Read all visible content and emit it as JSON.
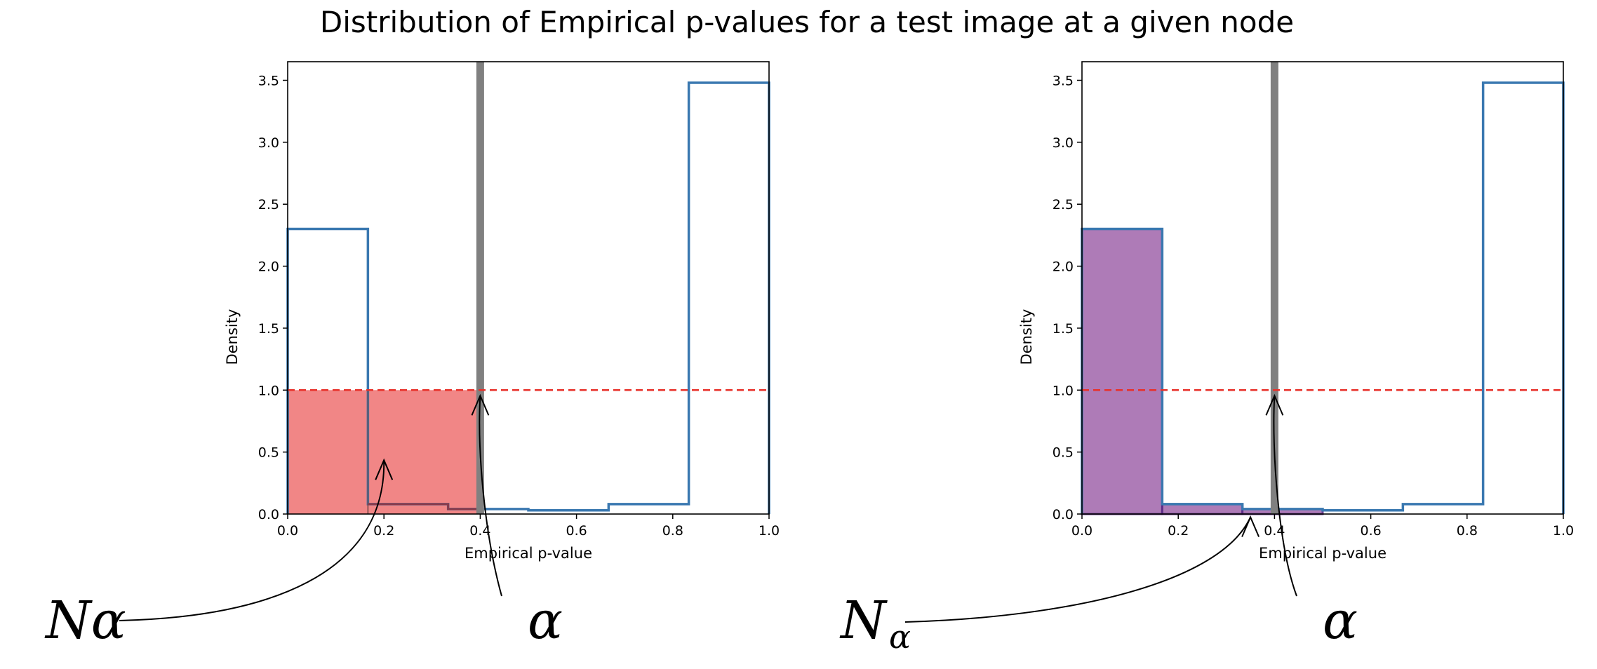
{
  "title": "Distribution of Empirical p-values for a test image at a given node",
  "chart_data": [
    {
      "type": "bar",
      "panel": "left",
      "xlabel": "Empirical p-value",
      "ylabel": "Density",
      "xlim": [
        0.0,
        1.0
      ],
      "ylim": [
        0.0,
        3.65
      ],
      "xticks": [
        "0.0",
        "0.2",
        "0.4",
        "0.6",
        "0.8",
        "1.0"
      ],
      "yticks": [
        "0.0",
        "0.5",
        "1.0",
        "1.5",
        "2.0",
        "2.5",
        "3.0",
        "3.5"
      ],
      "bin_edges": [
        0.0,
        0.1667,
        0.3333,
        0.5,
        0.6667,
        0.8333,
        1.0
      ],
      "densities": [
        2.3,
        0.08,
        0.04,
        0.03,
        0.08,
        3.48
      ],
      "reference_line_y": 1.0,
      "alpha_line_x": 0.4,
      "shaded_region": {
        "x": [
          0.0,
          0.4
        ],
        "y": [
          0.0,
          1.0
        ],
        "color": "#f08080"
      },
      "hist_color": "#3a78b0",
      "reference_color": "#e8312a",
      "annotations": [
        {
          "text": "Nα",
          "subscript": "",
          "points_to": [
            0.2,
            0.48
          ]
        },
        {
          "text": "α",
          "subscript": "",
          "points_to": [
            0.4,
            1.0
          ]
        }
      ]
    },
    {
      "type": "bar",
      "panel": "right",
      "xlabel": "Empirical p-value",
      "ylabel": "Density",
      "xlim": [
        0.0,
        1.0
      ],
      "ylim": [
        0.0,
        3.65
      ],
      "xticks": [
        "0.0",
        "0.2",
        "0.4",
        "0.6",
        "0.8",
        "1.0"
      ],
      "yticks": [
        "0.0",
        "0.5",
        "1.0",
        "1.5",
        "2.0",
        "2.5",
        "3.0",
        "3.5"
      ],
      "bin_edges": [
        0.0,
        0.1667,
        0.3333,
        0.5,
        0.6667,
        0.8333,
        1.0
      ],
      "densities": [
        2.3,
        0.08,
        0.04,
        0.03,
        0.08,
        3.48
      ],
      "reference_line_y": 1.0,
      "alpha_line_x": 0.4,
      "highlight_bins": [
        0,
        1,
        2
      ],
      "highlight_color": "#a66db0",
      "highlight_edge": "#5b2a86",
      "hist_color": "#3a78b0",
      "reference_color": "#e8312a",
      "annotations": [
        {
          "text": "N",
          "subscript": "α",
          "points_to": [
            0.35,
            0.02
          ]
        },
        {
          "text": "α",
          "subscript": "",
          "points_to": [
            0.4,
            1.0
          ]
        }
      ]
    }
  ]
}
